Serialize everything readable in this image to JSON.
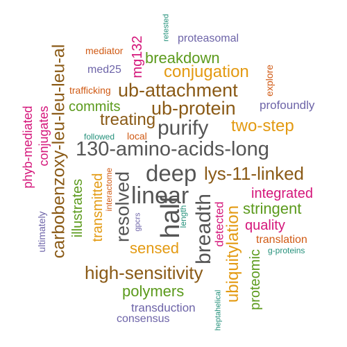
{
  "palette": {
    "gray": "#555555",
    "brown": "#8a5a16",
    "orange": "#e39a12",
    "magenta": "#d4157a",
    "green": "#5b9a1c",
    "purple": "#6d64a8",
    "red_orange": "#d05a14",
    "teal": "#23907a"
  },
  "words": [
    {
      "text": "130-amino-acids-long",
      "color": "gray"
    },
    {
      "text": "deep",
      "color": "gray"
    },
    {
      "text": "linear",
      "color": "gray"
    },
    {
      "text": "purify",
      "color": "gray"
    },
    {
      "text": "half",
      "color": "gray"
    },
    {
      "text": "breadth",
      "color": "gray"
    },
    {
      "text": "resolved",
      "color": "gray"
    },
    {
      "text": "ub-attachment",
      "color": "brown"
    },
    {
      "text": "ub-protein",
      "color": "brown"
    },
    {
      "text": "lys-11-linked",
      "color": "brown"
    },
    {
      "text": "high-sensitivity",
      "color": "brown"
    },
    {
      "text": "carbobenzoxy-leu-leu-leu-al",
      "color": "brown"
    },
    {
      "text": "treating",
      "color": "brown"
    },
    {
      "text": "two-step",
      "color": "orange"
    },
    {
      "text": "conjugation",
      "color": "orange"
    },
    {
      "text": "sensed",
      "color": "orange"
    },
    {
      "text": "ubiquitylation",
      "color": "orange"
    },
    {
      "text": "transmitted",
      "color": "orange"
    },
    {
      "text": "breakdown",
      "color": "green"
    },
    {
      "text": "commits",
      "color": "green"
    },
    {
      "text": "stringent",
      "color": "green"
    },
    {
      "text": "polymers",
      "color": "green"
    },
    {
      "text": "illustrates",
      "color": "green"
    },
    {
      "text": "proteomic",
      "color": "green"
    },
    {
      "text": "integrated",
      "color": "magenta"
    },
    {
      "text": "quality",
      "color": "magenta"
    },
    {
      "text": "phyb-mediated",
      "color": "magenta"
    },
    {
      "text": "conjugates",
      "color": "magenta"
    },
    {
      "text": "mg132",
      "color": "magenta"
    },
    {
      "text": "detected",
      "color": "magenta"
    },
    {
      "text": "proteasomal",
      "color": "purple"
    },
    {
      "text": "profoundly",
      "color": "purple"
    },
    {
      "text": "med25",
      "color": "purple"
    },
    {
      "text": "transduction",
      "color": "purple"
    },
    {
      "text": "consensus",
      "color": "purple"
    },
    {
      "text": "ultimately",
      "color": "purple"
    },
    {
      "text": "gpcrs",
      "color": "purple"
    },
    {
      "text": "translation",
      "color": "red_orange"
    },
    {
      "text": "mediator",
      "color": "red_orange"
    },
    {
      "text": "trafficking",
      "color": "red_orange"
    },
    {
      "text": "explore",
      "color": "red_orange"
    },
    {
      "text": "local",
      "color": "red_orange"
    },
    {
      "text": "interactome",
      "color": "red_orange"
    },
    {
      "text": "followed",
      "color": "teal"
    },
    {
      "text": "retested",
      "color": "teal"
    },
    {
      "text": "g-proteins",
      "color": "teal"
    },
    {
      "text": "length",
      "color": "teal"
    },
    {
      "text": "heptahelical",
      "color": "teal"
    }
  ]
}
